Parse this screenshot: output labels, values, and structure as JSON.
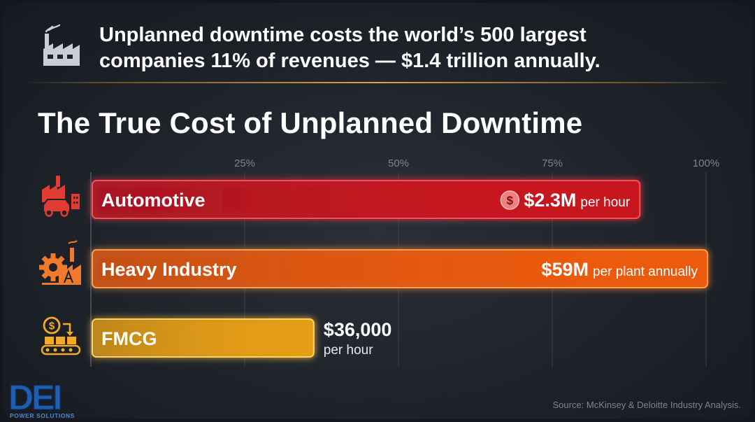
{
  "header": {
    "line1": "Unplanned downtime costs the world’s 500 largest",
    "line2": "companies 11% of revenues — $1.4 trillion annually.",
    "icon": "factory-icon"
  },
  "source": "Source: McKinsey & Deloitte Industry Analysis.",
  "logo": {
    "text": "DEI",
    "subtitle": "POWER SOLUTIONS"
  },
  "colors": {
    "automotive": "#c8141f",
    "heavy_industry": "#ec5a10",
    "fmcg": "#e59e14",
    "grid": "#3c424c",
    "tick": "#7d8592"
  },
  "chart_data": {
    "type": "bar",
    "orientation": "horizontal",
    "title": "The True Cost of Unplanned Downtime",
    "x_ticks": [
      "25%",
      "50%",
      "75%",
      "100%"
    ],
    "x_tick_values": [
      25,
      50,
      75,
      100
    ],
    "xlim": [
      0,
      100
    ],
    "grid": true,
    "categories": [
      "Automotive",
      "Heavy Industry",
      "FMCG"
    ],
    "values": [
      89,
      100,
      36
    ],
    "icons": [
      "car-factory-icon",
      "gear-factory-icon",
      "conveyor-dollar-icon"
    ],
    "labels": [
      {
        "value": "$2.3M",
        "unit": "per hour",
        "coin": "$"
      },
      {
        "value": "$59M",
        "unit": "per plant annually"
      },
      {
        "value": "$36,000",
        "unit": "per hour"
      }
    ]
  }
}
